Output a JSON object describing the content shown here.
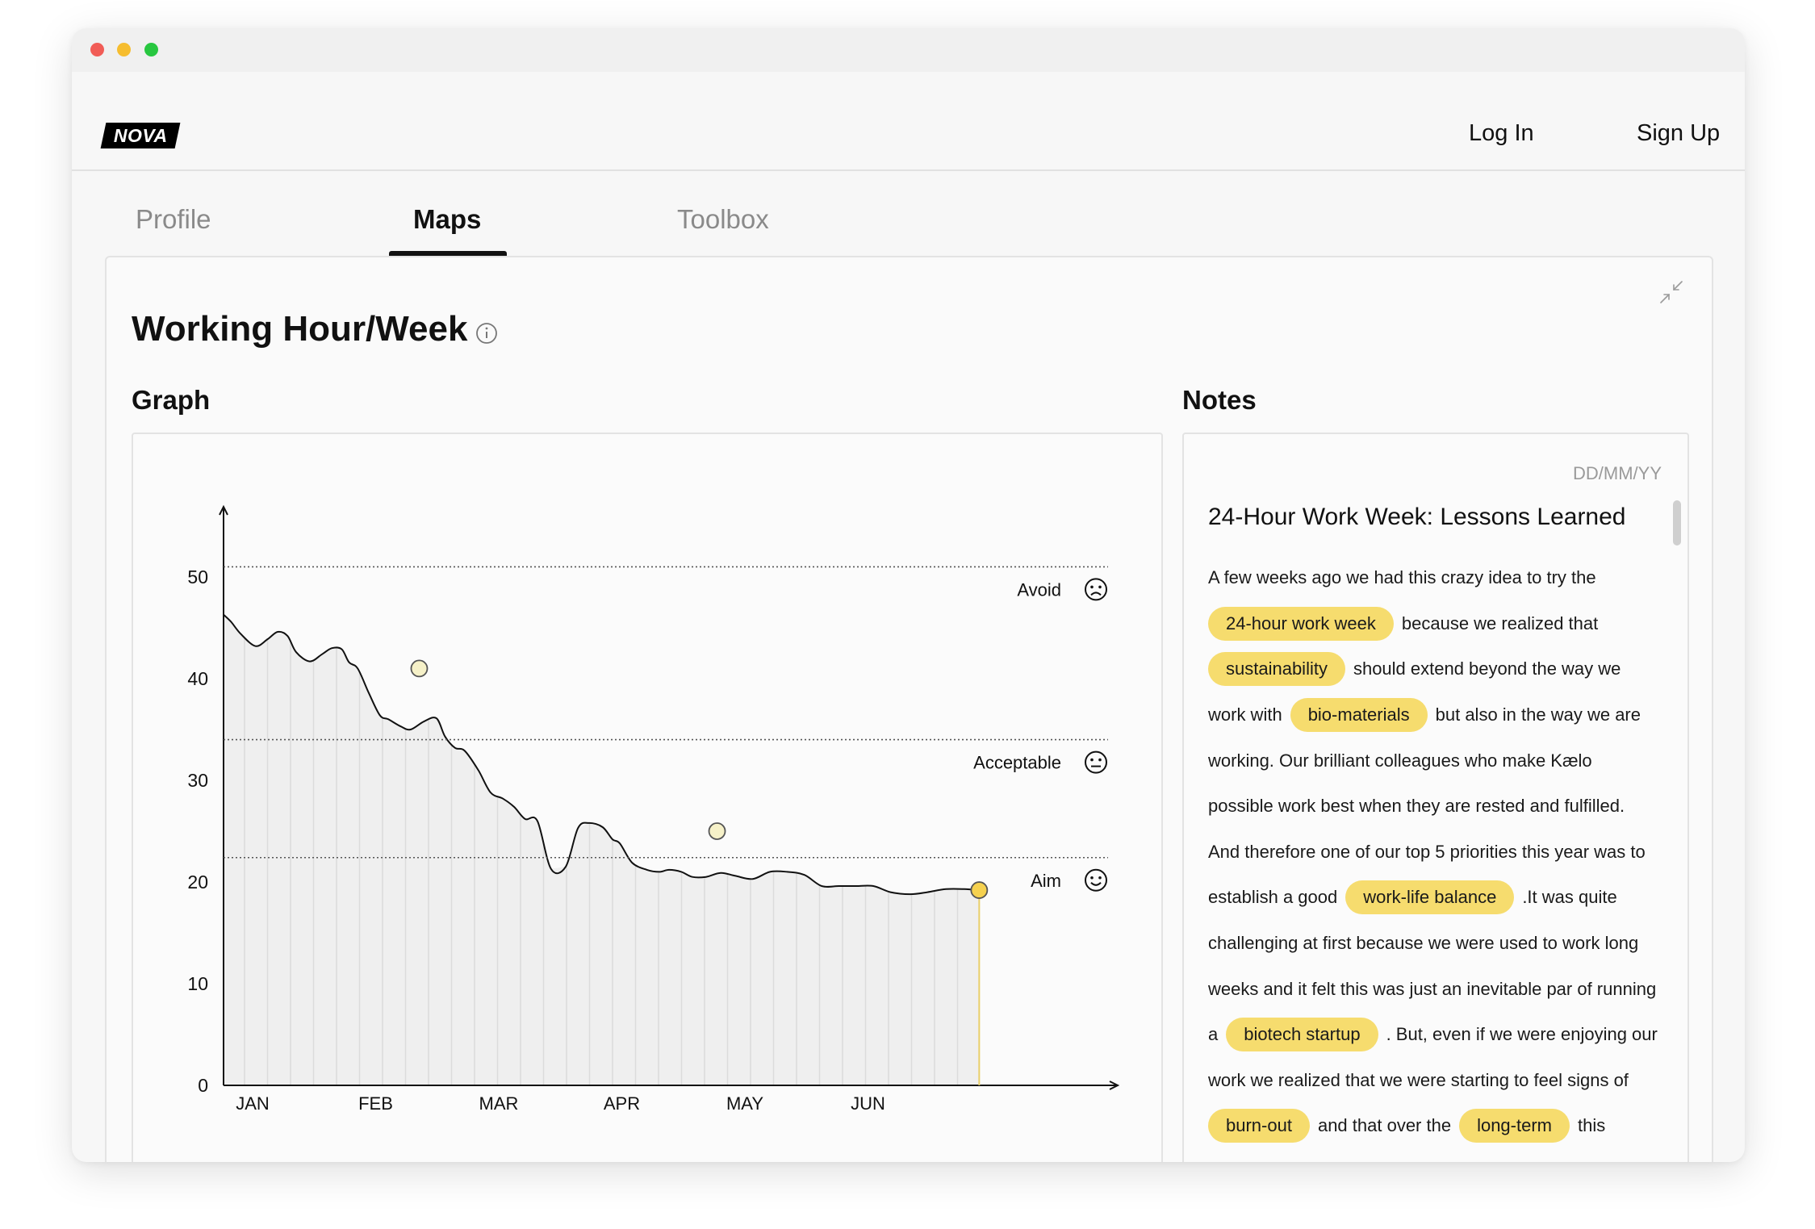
{
  "app": {
    "logo": "NOVA"
  },
  "nav": {
    "login": "Log In",
    "signup": "Sign Up"
  },
  "tabs": [
    {
      "label": "Profile"
    },
    {
      "label": "Maps",
      "active": true
    },
    {
      "label": "Toolbox"
    }
  ],
  "page": {
    "title": "Working Hour/Week"
  },
  "graph": {
    "title": "Graph"
  },
  "notes": {
    "title": "Notes",
    "date_placeholder": "DD/MM/YY",
    "heading": "24-Hour Work Week: Lessons Learned",
    "lines": [
      {
        "parts": [
          {
            "text": "A few weeks ago we had this crazy idea to try  the"
          }
        ]
      },
      {
        "parts": [
          {
            "tag": "24-hour work week"
          },
          {
            "text": "because we realized that"
          }
        ]
      },
      {
        "parts": [
          {
            "tag": "sustainability"
          },
          {
            "text": "should extend beyond the way we"
          }
        ]
      },
      {
        "parts": [
          {
            "text": "work with"
          },
          {
            "tag": "bio-materials"
          },
          {
            "text": "but also in the way we are"
          }
        ]
      },
      {
        "parts": [
          {
            "text": "working. Our brilliant colleagues who make Kælo"
          }
        ]
      },
      {
        "parts": [
          {
            "text": "possible work best when they are rested and fulfilled."
          }
        ]
      },
      {
        "parts": [
          {
            "text": "And therefore one of our top 5 priorities this year was to"
          }
        ]
      },
      {
        "parts": [
          {
            "text": "establish a good"
          },
          {
            "tag": "work-life balance"
          },
          {
            "text": ".It was quite"
          }
        ]
      },
      {
        "parts": [
          {
            "text": "challenging at first because we were used to work long"
          }
        ]
      },
      {
        "parts": [
          {
            "text": "weeks and it felt this was just an inevitable par of running"
          }
        ]
      },
      {
        "parts": [
          {
            "text": "a"
          },
          {
            "tag": "biotech startup"
          },
          {
            "text": ". But, even if we were enjoying our"
          }
        ]
      },
      {
        "parts": [
          {
            "text": "work we realized that we were starting to feel signs of"
          }
        ]
      },
      {
        "parts": [
          {
            "tag": "burn-out"
          },
          {
            "text": "and that over the"
          },
          {
            "tag": "long-term"
          },
          {
            "text": "this"
          }
        ]
      }
    ]
  },
  "colors": {
    "accent": "#f6dc6e",
    "point_current": "#f5d14f",
    "point_past": "#f6f1c8"
  },
  "chart_data": {
    "type": "area",
    "title": "",
    "xlabel": "",
    "ylabel": "",
    "ylim": [
      0,
      55
    ],
    "yticks": [
      0,
      10,
      20,
      30,
      40,
      50
    ],
    "month_labels": [
      "JAN",
      "FEB",
      "MAR",
      "APR",
      "MAY",
      "JUN"
    ],
    "x_months": [
      0,
      0.06,
      0.14,
      0.26,
      0.36,
      0.44,
      0.52,
      0.59,
      0.7,
      0.8,
      0.88,
      0.96,
      1.02,
      1.09,
      1.18,
      1.27,
      1.34,
      1.44,
      1.52,
      1.63,
      1.73,
      1.8,
      1.88,
      1.96,
      2.07,
      2.17,
      2.27,
      2.36,
      2.45,
      2.55,
      2.66,
      2.78,
      2.88,
      2.97,
      3.08,
      3.16,
      3.22,
      3.32,
      3.44,
      3.54,
      3.62,
      3.72,
      3.81,
      3.92,
      4.04,
      4.16,
      4.3,
      4.44,
      4.58,
      4.72,
      4.86,
      5,
      5.14,
      5.28,
      5.42,
      5.58,
      5.72,
      5.87,
      6.02,
      6.14
    ],
    "values": [
      46.3,
      45.6,
      44.4,
      43.2,
      43.9,
      44.6,
      44.2,
      42.6,
      41.7,
      42.4,
      43.0,
      42.9,
      41.6,
      41.0,
      38.6,
      36.4,
      36.0,
      35.3,
      35.0,
      35.8,
      36.1,
      34.3,
      33.2,
      32.9,
      31.0,
      28.8,
      28.2,
      27.4,
      26.2,
      26.0,
      21.3,
      21.5,
      25.3,
      25.8,
      25.4,
      24.2,
      23.8,
      21.9,
      21.2,
      21.0,
      21.2,
      21.0,
      20.5,
      20.5,
      20.9,
      20.6,
      20.3,
      21.0,
      21.0,
      20.7,
      19.6,
      19.6,
      19.6,
      19.6,
      19.0,
      18.8,
      19.0,
      19.3,
      19.3,
      19.2
    ],
    "markers": [
      {
        "x_months": 1.59,
        "value": 41.0,
        "style": "past"
      },
      {
        "x_months": 4.01,
        "value": 25.0,
        "style": "past"
      },
      {
        "x_months": 6.14,
        "value": 19.2,
        "style": "current"
      }
    ],
    "thresholds": [
      {
        "label": "Avoid",
        "value": 51,
        "icon": "sad-face-icon"
      },
      {
        "label": "Acceptable",
        "value": 34,
        "icon": "neutral-face-icon"
      },
      {
        "label": "Aim",
        "value": 22.4,
        "icon": "smile-face-icon"
      }
    ],
    "grid": {
      "vertical": true,
      "horizontal": false
    }
  }
}
